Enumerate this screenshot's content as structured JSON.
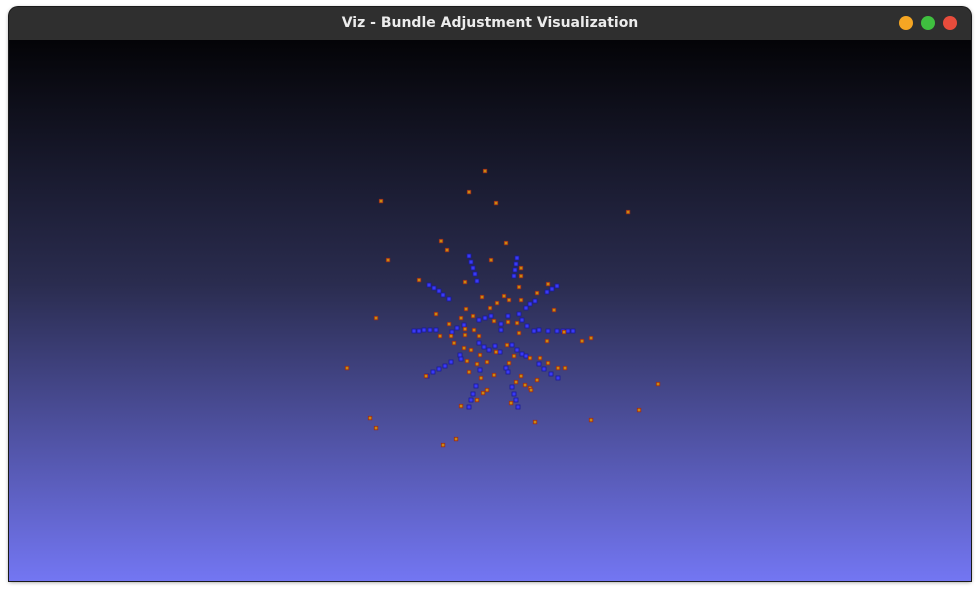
{
  "window": {
    "title": "Viz - Bundle Adjustment Visualization",
    "controls": [
      {
        "name": "minimize",
        "color": "#f5a623"
      },
      {
        "name": "maximize",
        "color": "#3fbf3f"
      },
      {
        "name": "close",
        "color": "#e74c3c"
      }
    ]
  },
  "viewport": {
    "background_top": "#040407",
    "background_bottom": "#7376f2",
    "colors": {
      "camera": "#3a3af5",
      "landmark": "#c88a10"
    }
  }
}
